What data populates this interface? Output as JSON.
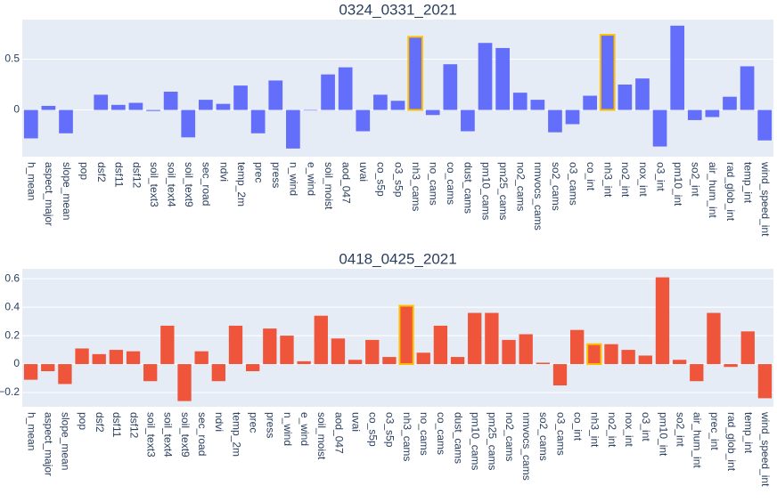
{
  "chart_data": [
    {
      "type": "bar",
      "title": "0324_0331_2021",
      "color": "#636efa",
      "grid": true,
      "highlighted": [
        22,
        33
      ],
      "highlight_color": "#ffc000",
      "categories": [
        "h_mean",
        "aspect_major",
        "slope_mean",
        "pop",
        "dsf2",
        "dsf11",
        "dsf12",
        "soil_text3",
        "soil_text4",
        "soil_text9",
        "sec_road",
        "ndvi",
        "temp_2m",
        "prec",
        "press",
        "n_wind",
        "e_wind",
        "soil_moist",
        "aod_047",
        "uvai",
        "co_s5p",
        "o3_s5p",
        "nh3_cams",
        "no_cams",
        "co_cams",
        "dust_cams",
        "pm10_cams",
        "pm25_cams",
        "no2_cams",
        "nmvocs_cams",
        "so2_cams",
        "o3_cams",
        "co_int",
        "nh3_int",
        "no2_int",
        "nox_int",
        "o3_int",
        "pm10_int",
        "so2_int",
        "air_hum_int",
        "rad_glob_int",
        "temp_int",
        "wind_speed_int"
      ],
      "values": [
        -0.28,
        0.04,
        -0.23,
        0,
        0.15,
        0.05,
        0.07,
        -0.01,
        0.18,
        -0.27,
        0.1,
        0.06,
        0.24,
        -0.23,
        0.29,
        -0.38,
        -0.005,
        0.35,
        0.42,
        -0.21,
        0.15,
        0.09,
        0.72,
        -0.05,
        0.45,
        -0.21,
        0.66,
        0.61,
        0.17,
        0.1,
        -0.22,
        -0.14,
        0.14,
        0.74,
        0.25,
        0.31,
        -0.36,
        0.83,
        -0.1,
        -0.07,
        0.13,
        0.43,
        -0.3
      ],
      "ylim": [
        -0.46,
        0.89
      ],
      "yticks": [
        0,
        0.5
      ]
    },
    {
      "type": "bar",
      "title": "0418_0425_2021",
      "color": "#ef553b",
      "grid": true,
      "highlighted": [
        22,
        33
      ],
      "highlight_color": "#ffc000",
      "categories": [
        "h_mean",
        "aspect_major",
        "slope_mean",
        "pop",
        "dsf2",
        "dsf11",
        "dsf12",
        "soil_text3",
        "soil_text4",
        "soil_text9",
        "sec_road",
        "ndvi",
        "temp_2m",
        "prec",
        "press",
        "n_wind",
        "e_wind",
        "soil_moist",
        "aod_047",
        "uvai",
        "co_s5p",
        "o3_s5p",
        "nh3_cams",
        "no_cams",
        "co_cams",
        "dust_cams",
        "pm10_cams",
        "pm25_cams",
        "no2_cams",
        "nmvocs_cams",
        "so2_cams",
        "o3_cams",
        "co_int",
        "nh3_int",
        "no2_int",
        "nox_int",
        "o3_int",
        "pm10_int",
        "so2_int",
        "air_hum_int",
        "prec_int",
        "rad_glob_int",
        "temp_int",
        "wind_speed_int"
      ],
      "values": [
        -0.11,
        -0.05,
        -0.14,
        0.11,
        0.07,
        0.1,
        0.09,
        -0.12,
        0.27,
        -0.26,
        0.09,
        -0.12,
        0.27,
        -0.05,
        0.25,
        0.2,
        0.02,
        0.34,
        0.18,
        0.03,
        0.17,
        0.05,
        0.41,
        0.08,
        0.27,
        0.05,
        0.36,
        0.36,
        0.17,
        0.21,
        0.01,
        -0.15,
        0.24,
        0.14,
        0.14,
        0.1,
        0.06,
        0.61,
        0.03,
        -0.12,
        0.36,
        -0.02,
        0.23,
        -0.24
      ],
      "ylim": [
        -0.3,
        0.67
      ],
      "yticks": [
        {
          "value": -0.2,
          "label": "−0.2"
        },
        0,
        0.2,
        0.4,
        0.6
      ]
    }
  ]
}
